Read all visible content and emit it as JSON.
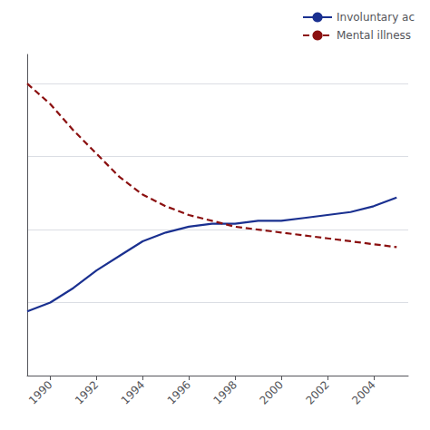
{
  "chart_data": {
    "type": "line",
    "x": [
      1989,
      1990,
      1991,
      1992,
      1993,
      1994,
      1995,
      1996,
      1997,
      1998,
      1999,
      2000,
      2001,
      2002,
      2003,
      2004,
      2005
    ],
    "series": [
      {
        "name": "Involuntary ac",
        "color": "#1a3090",
        "line_style": "solid",
        "values": [
          0.22,
          0.25,
          0.3,
          0.36,
          0.41,
          0.46,
          0.49,
          0.51,
          0.52,
          0.52,
          0.53,
          0.53,
          0.54,
          0.55,
          0.56,
          0.58,
          0.61
        ]
      },
      {
        "name": "Mental illness",
        "color": "#8b1010",
        "line_style": "dashed",
        "values": [
          1.0,
          0.93,
          0.84,
          0.76,
          0.68,
          0.62,
          0.58,
          0.55,
          0.53,
          0.51,
          0.5,
          0.49,
          0.48,
          0.47,
          0.46,
          0.45,
          0.44
        ]
      }
    ],
    "xlim": [
      1989.0,
      2005.5
    ],
    "xticks": [
      1990,
      1992,
      1994,
      1996,
      1998,
      2000,
      2002,
      2004
    ],
    "ylim": [
      0.0,
      1.1
    ],
    "yticks": [
      0.25,
      0.5,
      0.75,
      1
    ],
    "grid": true,
    "legend": "upper right",
    "tick_labels": "x"
  }
}
